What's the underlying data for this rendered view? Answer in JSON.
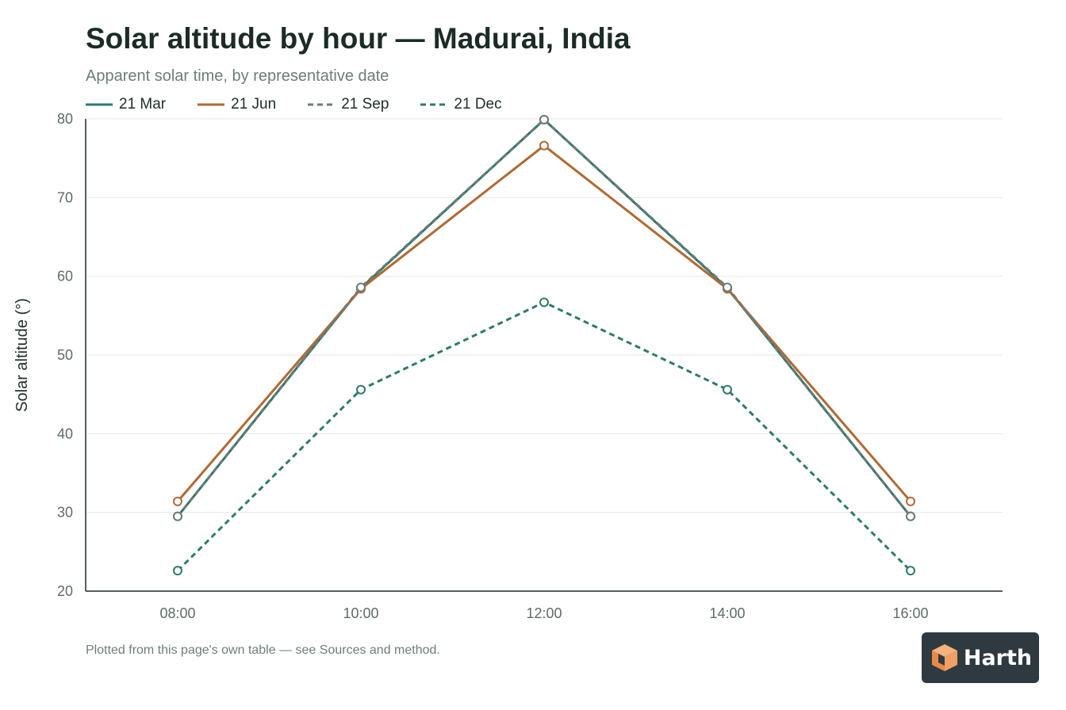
{
  "title": "Solar altitude by hour — Madurai, India",
  "subtitle": "Apparent solar time, by representative date",
  "footnote": "Plotted from this page's own table — see Sources and method.",
  "logo": {
    "text": "Harth"
  },
  "colors": {
    "teal": "#2e7a6e",
    "copper": "#b06a34",
    "gray": "#6e7a78",
    "grid": "#e6e9e8",
    "axis": "#1f2d2a"
  },
  "chart_data": {
    "type": "line",
    "title": "Solar altitude by hour — Madurai, India",
    "subtitle": "Apparent solar time, by representative date",
    "xlabel": "",
    "ylabel": "Solar altitude (°)",
    "categories": [
      "08:00",
      "10:00",
      "12:00",
      "14:00",
      "16:00"
    ],
    "ylim": [
      20,
      80
    ],
    "yticks": [
      20,
      30,
      40,
      50,
      60,
      70,
      80
    ],
    "grid": true,
    "legend": "top-left",
    "series": [
      {
        "name": "21 Mar",
        "values": [
          29.5,
          58.5,
          79.9,
          58.5,
          29.5
        ],
        "color": "#2e7a6e",
        "dash": "solid"
      },
      {
        "name": "21 Jun",
        "values": [
          31.4,
          58.4,
          76.6,
          58.4,
          31.4
        ],
        "color": "#b06a34",
        "dash": "solid"
      },
      {
        "name": "21 Sep",
        "values": [
          29.5,
          58.6,
          79.9,
          58.6,
          29.5
        ],
        "color": "#6e7a78",
        "dash": "dashed"
      },
      {
        "name": "21 Dec",
        "values": [
          22.6,
          45.6,
          56.7,
          45.6,
          22.6
        ],
        "color": "#2e7a6e",
        "dash": "dashed"
      }
    ]
  }
}
